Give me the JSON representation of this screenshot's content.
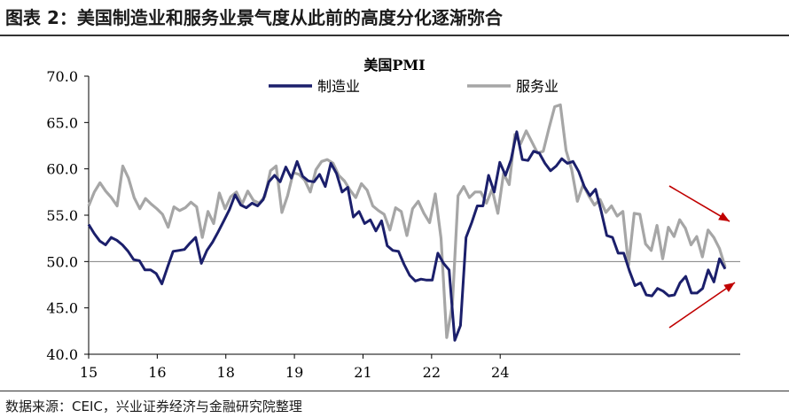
{
  "figure": {
    "title": "图表 2：美国制造业和服务业景气度从此前的高度分化逐渐弥合",
    "source": "数据来源：CEIC，兴业证券经济与金融研究院整理"
  },
  "chart_data": {
    "type": "line",
    "title": "美国PMI",
    "xlabel": "",
    "ylabel": "",
    "ylim": [
      40,
      70
    ],
    "xlim": [
      2015.0,
      2024.5
    ],
    "yticks": [
      "70.0",
      "65.0",
      "60.0",
      "55.0",
      "50.0",
      "45.0",
      "40.0"
    ],
    "xticks": [
      {
        "label": "15",
        "x": 2015.0
      },
      {
        "label": "16",
        "x": 2016.0
      },
      {
        "label": "18",
        "x": 2017.0
      },
      {
        "label": "19",
        "x": 2018.0
      },
      {
        "label": "21",
        "x": 2019.0
      },
      {
        "label": "22",
        "x": 2020.0
      },
      {
        "label": "24",
        "x": 2021.0
      }
    ],
    "reference_line": 50,
    "legend": "top",
    "grid": false,
    "colors": {
      "manufacturing": "#1b1f6b",
      "services": "#a6a6a6",
      "arrow": "#c00000"
    },
    "series": [
      {
        "name": "制造业",
        "values": [
          54.0,
          53.0,
          52.2,
          51.8,
          52.6,
          52.3,
          51.8,
          51.1,
          50.2,
          50.1,
          49.1,
          49.1,
          48.7,
          47.6,
          49.4,
          51.1,
          51.2,
          51.3,
          52.0,
          52.6,
          49.8,
          51.2,
          52.1,
          53.2,
          54.4,
          55.6,
          57.2,
          56.1,
          55.8,
          56.3,
          56.0,
          56.7,
          58.6,
          59.3,
          58.6,
          60.2,
          59.0,
          60.8,
          59.2,
          58.7,
          58.6,
          59.4,
          58.1,
          60.6,
          59.5,
          57.5,
          58.0,
          54.8,
          55.4,
          54.1,
          54.5,
          53.3,
          54.4,
          51.7,
          51.2,
          51.1,
          49.7,
          48.5,
          47.9,
          48.1,
          48.0,
          48.0,
          50.9,
          49.8,
          49.1,
          41.5,
          43.1,
          52.6,
          54.2,
          56.0,
          56.0,
          59.3,
          57.5,
          60.7,
          59.3,
          61.0,
          64.0,
          61.0,
          60.9,
          61.9,
          61.7,
          60.6,
          59.8,
          60.3,
          61.1,
          60.6,
          60.8,
          59.7,
          58.1,
          57.1,
          57.8,
          55.4,
          52.8,
          52.6,
          50.9,
          50.9,
          49.0,
          47.4,
          47.7,
          46.4,
          46.3,
          47.1,
          46.8,
          46.3,
          46.4,
          47.7,
          48.4,
          46.6,
          46.6,
          47.1,
          49.1,
          47.8,
          50.3,
          49.2
        ]
      },
      {
        "name": "服务业",
        "values": [
          56.0,
          57.5,
          58.5,
          57.6,
          56.9,
          56.0,
          60.3,
          59.0,
          56.9,
          55.7,
          56.8,
          56.2,
          55.7,
          55.1,
          53.7,
          55.9,
          55.5,
          55.8,
          56.4,
          55.9,
          52.6,
          55.4,
          54.1,
          57.4,
          55.7,
          57.0,
          57.5,
          56.2,
          57.6,
          56.6,
          56.3,
          57.0,
          59.8,
          60.3,
          55.3,
          57.1,
          59.6,
          59.4,
          58.8,
          57.5,
          59.9,
          60.8,
          61.0,
          60.6,
          59.3,
          58.7,
          57.7,
          56.9,
          58.4,
          57.7,
          56.0,
          55.5,
          55.1,
          53.4,
          55.8,
          55.4,
          52.8,
          55.7,
          56.5,
          55.2,
          54.2,
          57.3,
          52.5,
          41.8,
          45.4,
          57.1,
          58.1,
          56.9,
          57.5,
          57.5,
          56.3,
          57.8,
          55.2,
          59.5,
          58.3,
          63.7,
          62.7,
          64.1,
          62.9,
          61.7,
          61.9,
          64.4,
          66.7,
          66.9,
          62.0,
          59.9,
          56.5,
          58.3,
          57.1,
          56.1,
          56.7,
          55.3,
          56.0,
          54.9,
          55.4,
          49.6,
          55.2,
          55.1,
          51.9,
          51.2,
          53.9,
          50.3,
          53.7,
          52.7,
          54.5,
          53.6,
          51.8,
          52.7,
          50.5,
          53.4,
          52.6,
          51.4,
          49.4
        ]
      }
    ]
  }
}
